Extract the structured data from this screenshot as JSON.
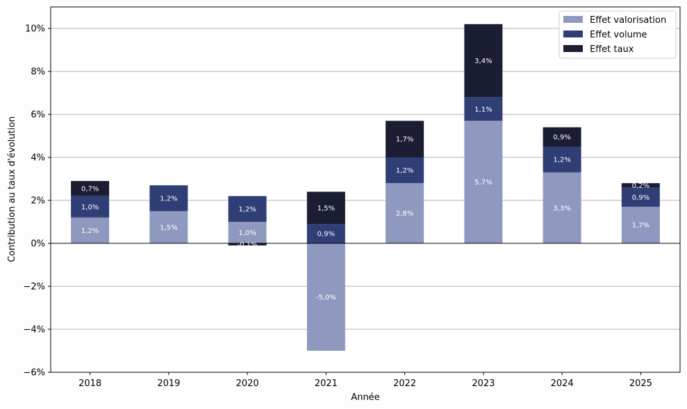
{
  "chart_data": {
    "type": "bar",
    "stacked": true,
    "title": "",
    "xlabel": "Année",
    "ylabel": "Contribution au taux d'évolution",
    "categories": [
      "2018",
      "2019",
      "2020",
      "2021",
      "2022",
      "2023",
      "2024",
      "2025"
    ],
    "ylim": [
      -6,
      11
    ],
    "yticks": [
      -6,
      -4,
      -2,
      0,
      2,
      4,
      6,
      8,
      10
    ],
    "ytick_labels": [
      "−6%",
      "−4%",
      "−2%",
      "0%",
      "2%",
      "4%",
      "6%",
      "8%",
      "10%"
    ],
    "grid": "horizontal",
    "legend_position": "top-right",
    "series": [
      {
        "name": "Effet valorisation",
        "color": "#8f99bf",
        "values": [
          1.2,
          1.5,
          1.0,
          -5.0,
          2.8,
          5.7,
          3.3,
          1.7
        ],
        "labels": [
          "1,2%",
          "1,5%",
          "1,0%",
          "-5,0%",
          "2,8%",
          "5,7%",
          "3,3%",
          "1,7%"
        ]
      },
      {
        "name": "Effet volume",
        "color": "#2f3e75",
        "values": [
          1.0,
          1.2,
          1.2,
          0.9,
          1.2,
          1.1,
          1.2,
          0.9
        ],
        "labels": [
          "1,0%",
          "1,2%",
          "1,2%",
          "0,9%",
          "1,2%",
          "1,1%",
          "1,2%",
          "0,9%"
        ]
      },
      {
        "name": "Effet taux",
        "color": "#1b1d33",
        "values": [
          0.7,
          0.0,
          -0.1,
          1.5,
          1.7,
          3.4,
          0.9,
          0.2
        ],
        "labels": [
          "0,7%",
          "",
          "-0,1%",
          "1,5%",
          "1,7%",
          "3,4%",
          "0,9%",
          "0,2%"
        ]
      }
    ]
  }
}
